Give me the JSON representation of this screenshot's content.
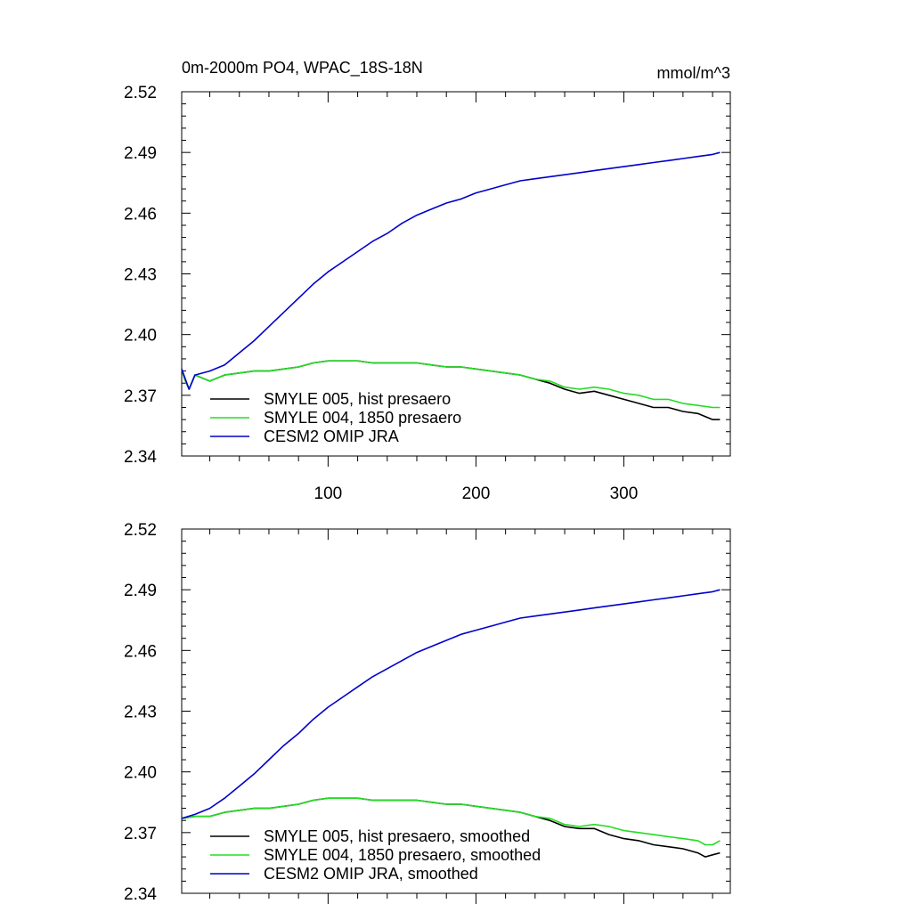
{
  "chart_data": [
    {
      "type": "line",
      "title": "0m-2000m PO4, WPAC_18S-18N",
      "units": "mmol/m^3",
      "xlim": [
        1,
        372
      ],
      "ylim": [
        2.34,
        2.52
      ],
      "y_ticks": [
        "2.34",
        "2.37",
        "2.40",
        "2.43",
        "2.46",
        "2.49",
        "2.52"
      ],
      "x_ticks": [
        {
          "value": 100,
          "label": "100"
        },
        {
          "value": 200,
          "label": "200"
        },
        {
          "value": 300,
          "label": "300"
        }
      ],
      "grid": false,
      "legend_position": "bottom-left",
      "series": [
        {
          "name": "SMYLE 005, hist presaero",
          "color": "#000000",
          "points": [
            [
              1,
              2.383
            ],
            [
              3,
              2.378
            ],
            [
              6,
              2.373
            ],
            [
              10,
              2.38
            ],
            [
              20,
              2.377
            ],
            [
              30,
              2.38
            ],
            [
              40,
              2.381
            ],
            [
              50,
              2.382
            ],
            [
              60,
              2.382
            ],
            [
              70,
              2.383
            ],
            [
              80,
              2.384
            ],
            [
              90,
              2.386
            ],
            [
              100,
              2.387
            ],
            [
              110,
              2.387
            ],
            [
              120,
              2.387
            ],
            [
              130,
              2.386
            ],
            [
              140,
              2.386
            ],
            [
              150,
              2.386
            ],
            [
              160,
              2.386
            ],
            [
              170,
              2.385
            ],
            [
              180,
              2.384
            ],
            [
              190,
              2.384
            ],
            [
              200,
              2.383
            ],
            [
              210,
              2.382
            ],
            [
              220,
              2.381
            ],
            [
              230,
              2.38
            ],
            [
              240,
              2.378
            ],
            [
              250,
              2.376
            ],
            [
              260,
              2.373
            ],
            [
              270,
              2.371
            ],
            [
              280,
              2.372
            ],
            [
              290,
              2.37
            ],
            [
              300,
              2.368
            ],
            [
              310,
              2.366
            ],
            [
              320,
              2.364
            ],
            [
              330,
              2.364
            ],
            [
              340,
              2.362
            ],
            [
              350,
              2.361
            ],
            [
              360,
              2.358
            ],
            [
              365,
              2.358
            ]
          ]
        },
        {
          "name": "SMYLE 004, 1850 presaero",
          "color": "#22dd22",
          "points": [
            [
              1,
              2.383
            ],
            [
              3,
              2.378
            ],
            [
              6,
              2.373
            ],
            [
              10,
              2.38
            ],
            [
              20,
              2.377
            ],
            [
              30,
              2.38
            ],
            [
              40,
              2.381
            ],
            [
              50,
              2.382
            ],
            [
              60,
              2.382
            ],
            [
              70,
              2.383
            ],
            [
              80,
              2.384
            ],
            [
              90,
              2.386
            ],
            [
              100,
              2.387
            ],
            [
              110,
              2.387
            ],
            [
              120,
              2.387
            ],
            [
              130,
              2.386
            ],
            [
              140,
              2.386
            ],
            [
              150,
              2.386
            ],
            [
              160,
              2.386
            ],
            [
              170,
              2.385
            ],
            [
              180,
              2.384
            ],
            [
              190,
              2.384
            ],
            [
              200,
              2.383
            ],
            [
              210,
              2.382
            ],
            [
              220,
              2.381
            ],
            [
              230,
              2.38
            ],
            [
              240,
              2.378
            ],
            [
              250,
              2.377
            ],
            [
              260,
              2.374
            ],
            [
              270,
              2.373
            ],
            [
              280,
              2.374
            ],
            [
              290,
              2.373
            ],
            [
              300,
              2.371
            ],
            [
              310,
              2.37
            ],
            [
              320,
              2.368
            ],
            [
              330,
              2.368
            ],
            [
              340,
              2.366
            ],
            [
              350,
              2.365
            ],
            [
              360,
              2.364
            ],
            [
              365,
              2.364
            ]
          ]
        },
        {
          "name": "CESM2 OMIP JRA",
          "color": "#0000cc",
          "points": [
            [
              1,
              2.383
            ],
            [
              3,
              2.379
            ],
            [
              6,
              2.373
            ],
            [
              10,
              2.38
            ],
            [
              20,
              2.382
            ],
            [
              30,
              2.385
            ],
            [
              40,
              2.391
            ],
            [
              50,
              2.397
            ],
            [
              60,
              2.404
            ],
            [
              70,
              2.411
            ],
            [
              80,
              2.418
            ],
            [
              90,
              2.425
            ],
            [
              100,
              2.431
            ],
            [
              110,
              2.436
            ],
            [
              120,
              2.441
            ],
            [
              130,
              2.446
            ],
            [
              140,
              2.45
            ],
            [
              150,
              2.455
            ],
            [
              160,
              2.459
            ],
            [
              170,
              2.462
            ],
            [
              180,
              2.465
            ],
            [
              190,
              2.467
            ],
            [
              200,
              2.47
            ],
            [
              210,
              2.472
            ],
            [
              220,
              2.474
            ],
            [
              230,
              2.476
            ],
            [
              240,
              2.477
            ],
            [
              250,
              2.478
            ],
            [
              260,
              2.479
            ],
            [
              270,
              2.48
            ],
            [
              280,
              2.481
            ],
            [
              290,
              2.482
            ],
            [
              300,
              2.483
            ],
            [
              310,
              2.484
            ],
            [
              320,
              2.485
            ],
            [
              330,
              2.486
            ],
            [
              340,
              2.487
            ],
            [
              350,
              2.488
            ],
            [
              360,
              2.489
            ],
            [
              365,
              2.49
            ]
          ]
        }
      ]
    },
    {
      "type": "line",
      "title": "",
      "xlim": [
        1,
        372
      ],
      "ylim": [
        2.34,
        2.52
      ],
      "y_ticks": [
        "2.34",
        "2.37",
        "2.40",
        "2.43",
        "2.46",
        "2.49",
        "2.52"
      ],
      "x_ticks": [
        {
          "value": 100,
          "label": ""
        },
        {
          "value": 200,
          "label": ""
        },
        {
          "value": 300,
          "label": ""
        }
      ],
      "grid": false,
      "legend_position": "bottom-left",
      "series": [
        {
          "name": "SMYLE 005, hist presaero, smoothed",
          "color": "#000000",
          "points": [
            [
              1,
              2.377
            ],
            [
              10,
              2.378
            ],
            [
              20,
              2.378
            ],
            [
              30,
              2.38
            ],
            [
              40,
              2.381
            ],
            [
              50,
              2.382
            ],
            [
              60,
              2.382
            ],
            [
              70,
              2.383
            ],
            [
              80,
              2.384
            ],
            [
              90,
              2.386
            ],
            [
              100,
              2.387
            ],
            [
              110,
              2.387
            ],
            [
              120,
              2.387
            ],
            [
              130,
              2.386
            ],
            [
              140,
              2.386
            ],
            [
              150,
              2.386
            ],
            [
              160,
              2.386
            ],
            [
              170,
              2.385
            ],
            [
              180,
              2.384
            ],
            [
              190,
              2.384
            ],
            [
              200,
              2.383
            ],
            [
              210,
              2.382
            ],
            [
              220,
              2.381
            ],
            [
              230,
              2.38
            ],
            [
              240,
              2.378
            ],
            [
              250,
              2.376
            ],
            [
              260,
              2.373
            ],
            [
              270,
              2.372
            ],
            [
              280,
              2.372
            ],
            [
              290,
              2.369
            ],
            [
              300,
              2.367
            ],
            [
              310,
              2.366
            ],
            [
              320,
              2.364
            ],
            [
              330,
              2.363
            ],
            [
              340,
              2.362
            ],
            [
              350,
              2.36
            ],
            [
              355,
              2.358
            ],
            [
              360,
              2.359
            ],
            [
              365,
              2.36
            ]
          ]
        },
        {
          "name": "SMYLE 004, 1850 presaero, smoothed",
          "color": "#22dd22",
          "points": [
            [
              1,
              2.377
            ],
            [
              10,
              2.378
            ],
            [
              20,
              2.378
            ],
            [
              30,
              2.38
            ],
            [
              40,
              2.381
            ],
            [
              50,
              2.382
            ],
            [
              60,
              2.382
            ],
            [
              70,
              2.383
            ],
            [
              80,
              2.384
            ],
            [
              90,
              2.386
            ],
            [
              100,
              2.387
            ],
            [
              110,
              2.387
            ],
            [
              120,
              2.387
            ],
            [
              130,
              2.386
            ],
            [
              140,
              2.386
            ],
            [
              150,
              2.386
            ],
            [
              160,
              2.386
            ],
            [
              170,
              2.385
            ],
            [
              180,
              2.384
            ],
            [
              190,
              2.384
            ],
            [
              200,
              2.383
            ],
            [
              210,
              2.382
            ],
            [
              220,
              2.381
            ],
            [
              230,
              2.38
            ],
            [
              240,
              2.378
            ],
            [
              250,
              2.377
            ],
            [
              260,
              2.374
            ],
            [
              270,
              2.373
            ],
            [
              280,
              2.374
            ],
            [
              290,
              2.373
            ],
            [
              300,
              2.371
            ],
            [
              310,
              2.37
            ],
            [
              320,
              2.369
            ],
            [
              330,
              2.368
            ],
            [
              340,
              2.367
            ],
            [
              350,
              2.366
            ],
            [
              355,
              2.364
            ],
            [
              360,
              2.364
            ],
            [
              365,
              2.366
            ]
          ]
        },
        {
          "name": "CESM2 OMIP JRA, smoothed",
          "color": "#0000cc",
          "points": [
            [
              1,
              2.377
            ],
            [
              10,
              2.379
            ],
            [
              20,
              2.382
            ],
            [
              30,
              2.387
            ],
            [
              40,
              2.393
            ],
            [
              50,
              2.399
            ],
            [
              60,
              2.406
            ],
            [
              70,
              2.413
            ],
            [
              80,
              2.419
            ],
            [
              90,
              2.426
            ],
            [
              100,
              2.432
            ],
            [
              110,
              2.437
            ],
            [
              120,
              2.442
            ],
            [
              130,
              2.447
            ],
            [
              140,
              2.451
            ],
            [
              150,
              2.455
            ],
            [
              160,
              2.459
            ],
            [
              170,
              2.462
            ],
            [
              180,
              2.465
            ],
            [
              190,
              2.468
            ],
            [
              200,
              2.47
            ],
            [
              210,
              2.472
            ],
            [
              220,
              2.474
            ],
            [
              230,
              2.476
            ],
            [
              240,
              2.477
            ],
            [
              250,
              2.478
            ],
            [
              260,
              2.479
            ],
            [
              270,
              2.48
            ],
            [
              280,
              2.481
            ],
            [
              290,
              2.482
            ],
            [
              300,
              2.483
            ],
            [
              310,
              2.484
            ],
            [
              320,
              2.485
            ],
            [
              330,
              2.486
            ],
            [
              340,
              2.487
            ],
            [
              350,
              2.488
            ],
            [
              360,
              2.489
            ],
            [
              365,
              2.49
            ]
          ]
        }
      ]
    }
  ]
}
